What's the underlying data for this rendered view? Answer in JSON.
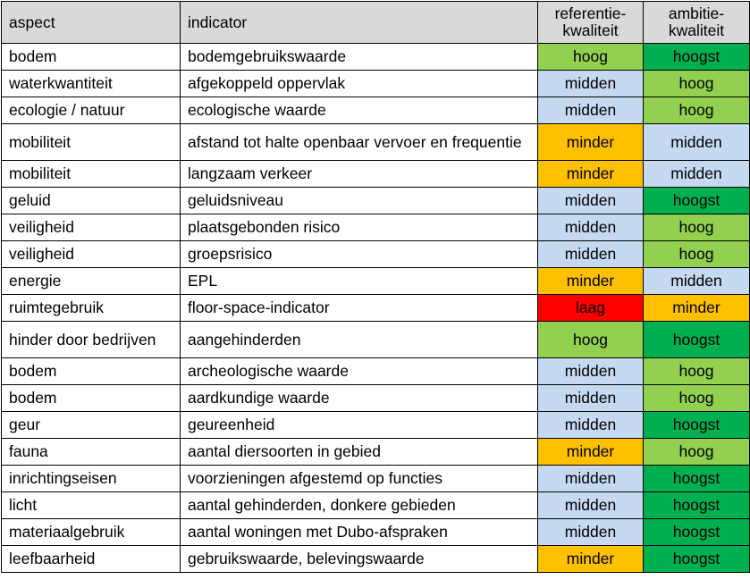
{
  "table": {
    "headers": {
      "aspect": "aspect",
      "indicator": "indicator",
      "referentie_line1": "referentie-",
      "referentie_line2": "kwaliteit",
      "ambitie_line1": "ambitie-",
      "ambitie_line2": "kwaliteit"
    },
    "level_colors": {
      "hoog": "#92d050",
      "hoogst": "#00b050",
      "midden": "#c5d9f1",
      "minder": "#ffc000",
      "laag": "#ff0000",
      "header": "#d9d9d9"
    },
    "rows": [
      {
        "aspect": "bodem",
        "indicator": "bodemgebruikswaarde",
        "referentie": "hoog",
        "ambitie": "hoogst"
      },
      {
        "aspect": "waterkwantiteit",
        "indicator": "afgekoppeld oppervlak",
        "referentie": "midden",
        "ambitie": "hoog"
      },
      {
        "aspect": "ecologie / natuur",
        "indicator": "ecologische waarde",
        "referentie": "midden",
        "ambitie": "hoog"
      },
      {
        "aspect": "mobiliteit",
        "indicator": "afstand tot halte openbaar vervoer en frequentie",
        "referentie": "minder",
        "ambitie": "midden"
      },
      {
        "aspect": "mobiliteit",
        "indicator": "langzaam verkeer",
        "referentie": "minder",
        "ambitie": "midden"
      },
      {
        "aspect": "geluid",
        "indicator": "geluidsniveau",
        "referentie": "midden",
        "ambitie": "hoogst"
      },
      {
        "aspect": "veiligheid",
        "indicator": "plaatsgebonden risico",
        "referentie": "midden",
        "ambitie": "hoog"
      },
      {
        "aspect": "veiligheid",
        "indicator": "groepsrisico",
        "referentie": "midden",
        "ambitie": "hoog"
      },
      {
        "aspect": "energie",
        "indicator": "EPL",
        "referentie": "minder",
        "ambitie": "midden"
      },
      {
        "aspect": "ruimtegebruik",
        "indicator": "floor-space-indicator",
        "referentie": "laag",
        "ambitie": "minder"
      },
      {
        "aspect": "hinder door bedrijven",
        "indicator": "aangehinderden",
        "referentie": "hoog",
        "ambitie": "hoogst"
      },
      {
        "aspect": "bodem",
        "indicator": "archeologische waarde",
        "referentie": "midden",
        "ambitie": "hoog"
      },
      {
        "aspect": "bodem",
        "indicator": "aardkundige waarde",
        "referentie": "midden",
        "ambitie": "hoog"
      },
      {
        "aspect": "geur",
        "indicator": "geureenheid",
        "referentie": "midden",
        "ambitie": "hoogst"
      },
      {
        "aspect": "fauna",
        "indicator": "aantal diersoorten in gebied",
        "referentie": "minder",
        "ambitie": "hoog"
      },
      {
        "aspect": "inrichtingseisen",
        "indicator": "voorzieningen afgestemd op functies",
        "referentie": "midden",
        "ambitie": "hoogst"
      },
      {
        "aspect": "licht",
        "indicator": "aantal gehinderden, donkere gebieden",
        "referentie": "midden",
        "ambitie": "hoogst"
      },
      {
        "aspect": "materiaalgebruik",
        "indicator": "aantal woningen met Dubo-afspraken",
        "referentie": "midden",
        "ambitie": "hoogst"
      },
      {
        "aspect": "leefbaarheid",
        "indicator": "gebruikswaarde, belevingswaarde",
        "referentie": "minder",
        "ambitie": "hoogst"
      }
    ]
  }
}
